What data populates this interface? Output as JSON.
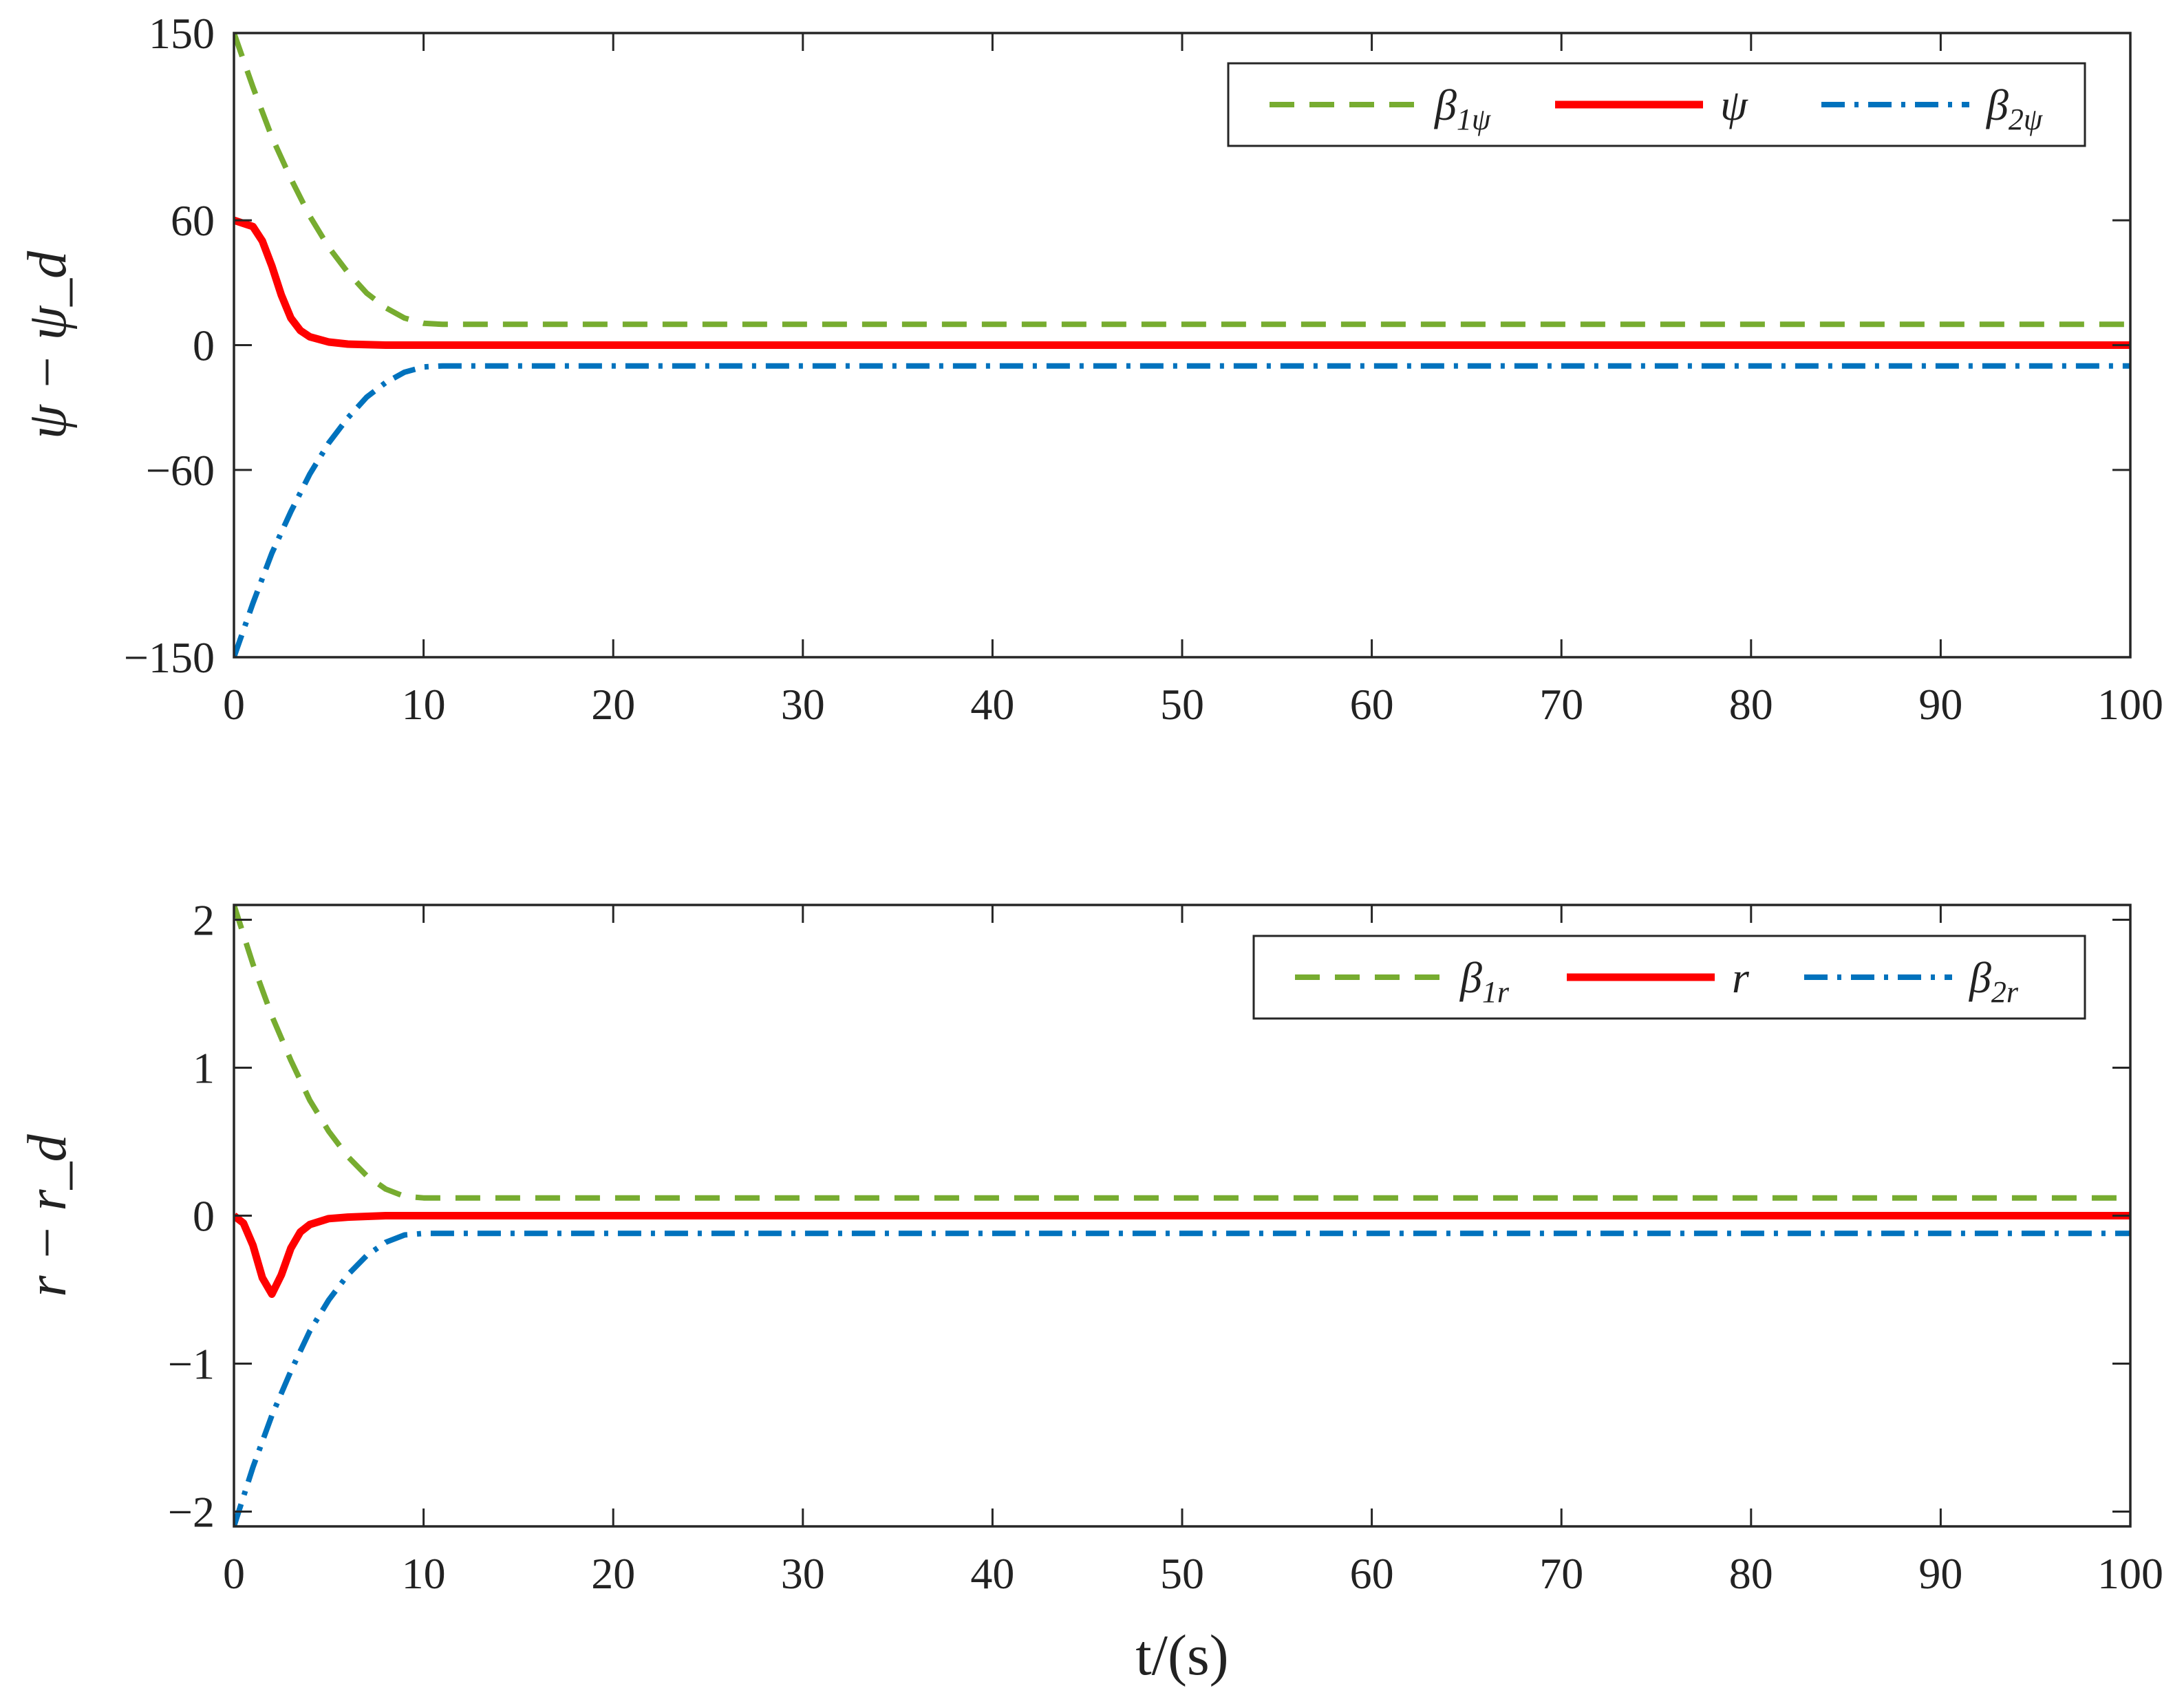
{
  "chart_data": [
    {
      "type": "line",
      "ylabel": "ψ − ψ_d",
      "xlabel": "",
      "xlim": [
        0,
        100
      ],
      "ylim": [
        -150,
        150
      ],
      "xticks": [
        "0",
        "10",
        "20",
        "30",
        "40",
        "50",
        "60",
        "70",
        "80",
        "90",
        "100"
      ],
      "yticks": [
        "150",
        "60",
        "0",
        "−60",
        "−150"
      ],
      "ytick_values": [
        150,
        60,
        0,
        -60,
        -150
      ],
      "grid": false,
      "legend_position": "top-right",
      "series": [
        {
          "name": "β1ψ",
          "legend_main": "β",
          "legend_sub": "1ψ",
          "color": "#77ac30",
          "style": "dashed",
          "x": [
            0,
            1,
            2,
            3,
            4,
            5,
            6,
            7,
            8,
            9,
            10,
            11,
            12,
            20,
            40,
            60,
            80,
            100
          ],
          "y": [
            150,
            124,
            100,
            80,
            62,
            47,
            35,
            25,
            18,
            13,
            10.5,
            10,
            10,
            10,
            10,
            10,
            10,
            10
          ]
        },
        {
          "name": "ψ",
          "legend_main": "ψ",
          "legend_sub": "",
          "color": "#ff0000",
          "style": "solid",
          "x": [
            0,
            1,
            1.5,
            2,
            2.5,
            3,
            3.5,
            4,
            5,
            6,
            8,
            10,
            20,
            40,
            60,
            80,
            100
          ],
          "y": [
            60,
            57,
            50,
            38,
            24,
            13,
            7,
            4,
            1.5,
            0.5,
            0,
            0,
            0,
            0,
            0,
            0,
            0
          ]
        },
        {
          "name": "β2ψ",
          "legend_main": "β",
          "legend_sub": "2ψ",
          "color": "#0072bd",
          "style": "dashdot",
          "x": [
            0,
            1,
            2,
            3,
            4,
            5,
            6,
            7,
            8,
            9,
            10,
            11,
            12,
            20,
            40,
            60,
            80,
            100
          ],
          "y": [
            -150,
            -124,
            -100,
            -80,
            -62,
            -47,
            -35,
            -25,
            -18,
            -13,
            -10.5,
            -10,
            -10,
            -10,
            -10,
            -10,
            -10,
            -10
          ]
        }
      ]
    },
    {
      "type": "line",
      "ylabel": "r − r_d",
      "xlabel": "t/(s)",
      "xlim": [
        0,
        100
      ],
      "ylim": [
        -2.1,
        2.1
      ],
      "xticks": [
        "0",
        "10",
        "20",
        "30",
        "40",
        "50",
        "60",
        "70",
        "80",
        "90",
        "100"
      ],
      "yticks": [
        "2",
        "1",
        "0",
        "−1",
        "−2"
      ],
      "ytick_values": [
        2,
        1,
        0,
        -1,
        -2
      ],
      "grid": false,
      "legend_position": "top-right",
      "series": [
        {
          "name": "β1r",
          "legend_main": "β",
          "legend_sub": "1r",
          "color": "#77ac30",
          "style": "dashed",
          "x": [
            0,
            1,
            2,
            3,
            4,
            5,
            6,
            7,
            8,
            9,
            10,
            20,
            40,
            60,
            80,
            100
          ],
          "y": [
            2.1,
            1.7,
            1.35,
            1.05,
            0.78,
            0.57,
            0.4,
            0.27,
            0.18,
            0.13,
            0.12,
            0.12,
            0.12,
            0.12,
            0.12,
            0.12
          ]
        },
        {
          "name": "r",
          "legend_main": "r",
          "legend_sub": "",
          "color": "#ff0000",
          "style": "solid",
          "x": [
            0,
            0.5,
            1,
            1.5,
            2,
            2.5,
            3,
            3.5,
            4,
            5,
            6,
            8,
            10,
            20,
            40,
            60,
            80,
            100
          ],
          "y": [
            0,
            -0.05,
            -0.2,
            -0.42,
            -0.53,
            -0.4,
            -0.22,
            -0.11,
            -0.06,
            -0.02,
            -0.01,
            0,
            0,
            0,
            0,
            0,
            0,
            0
          ]
        },
        {
          "name": "β2r",
          "legend_main": "β",
          "legend_sub": "2r",
          "color": "#0072bd",
          "style": "dashdot",
          "x": [
            0,
            1,
            2,
            3,
            4,
            5,
            6,
            7,
            8,
            9,
            10,
            20,
            40,
            60,
            80,
            100
          ],
          "y": [
            -2.1,
            -1.7,
            -1.35,
            -1.05,
            -0.78,
            -0.57,
            -0.4,
            -0.27,
            -0.18,
            -0.13,
            -0.12,
            -0.12,
            -0.12,
            -0.12,
            -0.12,
            -0.12
          ]
        }
      ]
    }
  ]
}
